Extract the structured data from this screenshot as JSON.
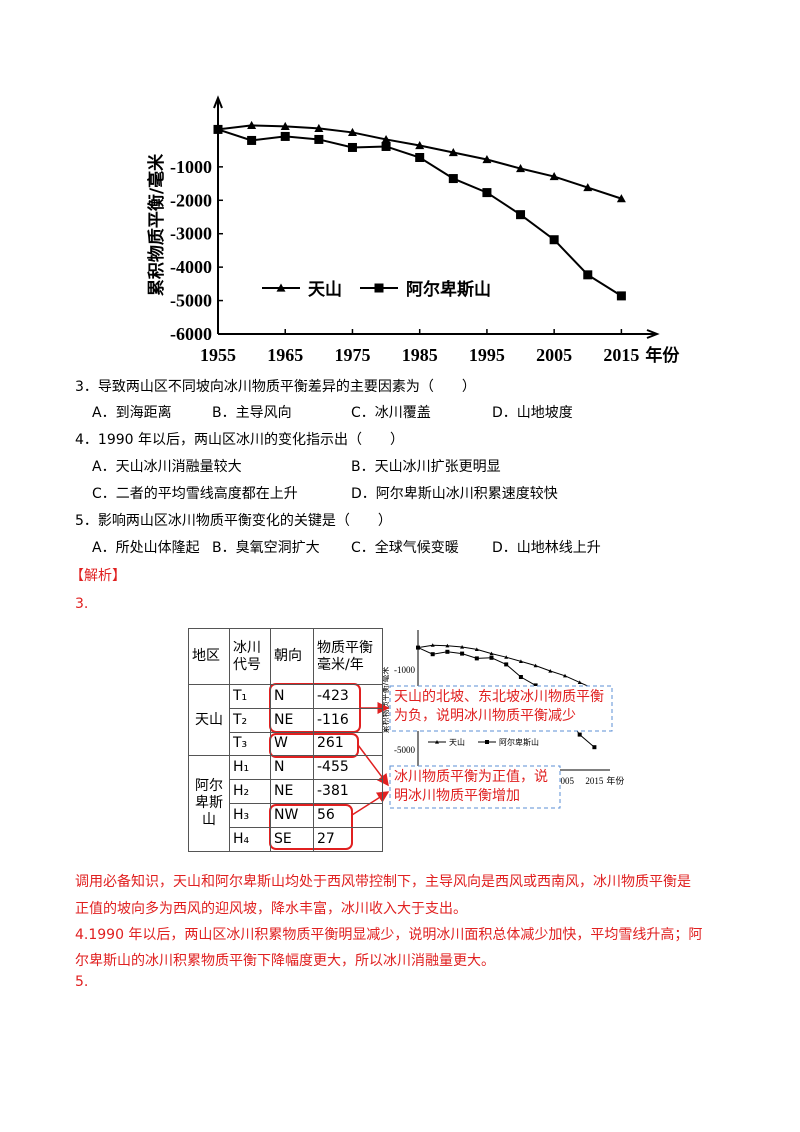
{
  "chart_data": {
    "type": "line",
    "ylabel": "累积物质平衡/毫米",
    "xlabel": "年份",
    "x": [
      1955,
      1960,
      1965,
      1970,
      1975,
      1980,
      1985,
      1990,
      1995,
      2000,
      2005,
      2010,
      2015
    ],
    "series": [
      {
        "name": "天山",
        "color": "#000000",
        "marker": "triangle",
        "values": [
          120,
          240,
          210,
          150,
          30,
          -180,
          -360,
          -570,
          -780,
          -1050,
          -1290,
          -1620,
          -1950
        ]
      },
      {
        "name": "阿尔卑斯山",
        "color": "#000000",
        "marker": "square",
        "values": [
          120,
          -210,
          -90,
          -180,
          -420,
          -390,
          -720,
          -1350,
          -1770,
          -2430,
          -3180,
          -4230,
          -4860
        ]
      }
    ],
    "xlim": [
      1955,
      2020
    ],
    "ylim": [
      -6000,
      1000
    ],
    "xticks": [
      1955,
      1965,
      1975,
      1985,
      1995,
      2005,
      2015
    ],
    "yticks": [
      -1000,
      -2000,
      -3000,
      -4000,
      -5000,
      -6000
    ],
    "grid": false
  },
  "questions": [
    {
      "stem": "3．导致两山区不同坡向冰川物质平衡差异的主要因素为（　　）",
      "options": [
        "A．到海距离",
        "B．主导风向",
        "C．冰川覆盖",
        "D．山地坡度"
      ]
    },
    {
      "stem": "4．1990 年以后，两山区冰川的变化指示出（　　）",
      "options": [
        "A．天山冰川消融量较大",
        "B．天山冰川扩张更明显",
        "C．二者的平均雪线高度都在上升",
        "D．阿尔卑斯山冰川积累速度较快"
      ]
    },
    {
      "stem": "5．影响两山区冰川物质平衡变化的关键是（　　）",
      "options": [
        "A．所处山体隆起 ",
        "B．臭氧空洞扩大",
        "C．全球气候变暖",
        "D．山地林线上升"
      ]
    }
  ],
  "analysis": {
    "heading": "【解析】",
    "q3_label": "3.",
    "table": {
      "header": [
        "地区",
        "冰川代号",
        "朝向",
        "物质平衡毫米/年"
      ],
      "groups": [
        {
          "region": "天山",
          "rows": [
            [
              "T₁",
              "N",
              "-423"
            ],
            [
              "T₂",
              "NE",
              "-116"
            ],
            [
              "T₃",
              "W",
              "261"
            ]
          ]
        },
        {
          "region": "阿尔卑斯山",
          "rows": [
            [
              "H₁",
              "N",
              "-455"
            ],
            [
              "H₂",
              "NE",
              "-381"
            ],
            [
              "H₃",
              "NW",
              "56"
            ],
            [
              "H₄",
              "SE",
              "27"
            ]
          ]
        }
      ]
    },
    "notes": [
      "天山的北坡、东北坡冰川物质平衡为负，说明冰川物质平衡减少",
      "冰川物质平衡为正值，说明冰川物质平衡增加"
    ],
    "thumbnail": {
      "ylabel": "累积物质平衡/毫米",
      "yticks": [
        -1000,
        -5000
      ],
      "xticks": [
        2005,
        2015
      ],
      "xlabel": "年份"
    },
    "q3_text": [
      "调用必备知识，天山和阿尔卑斯山均处于西风带控制下，主导风向是西风或西南风，冰川物质平衡是",
      "正值的坡向多为西风的迎风坡，降水丰富，冰川收入大于支出。"
    ],
    "q4_text": [
      "4.1990 年以后，两山区冰川积累物质平衡明显减少，说明冰川面积总体减少加快，平均雪线升高；阿",
      "尔卑斯山的冰川积累物质平衡下降幅度更大，所以冰川消融量更大。"
    ],
    "q5_label": "5."
  }
}
